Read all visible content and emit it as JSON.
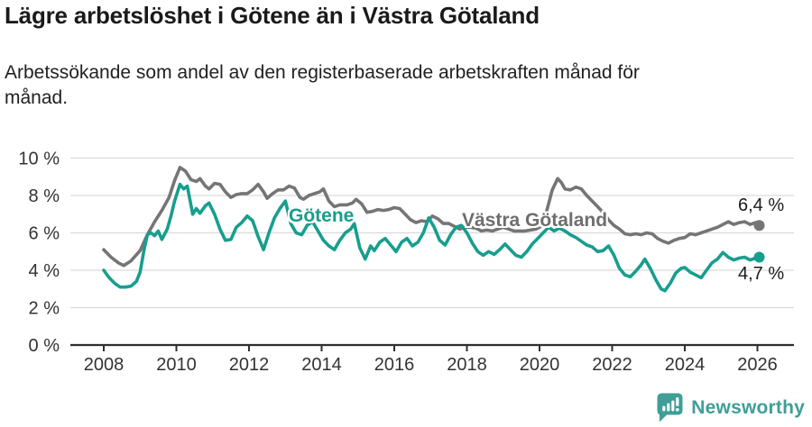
{
  "header": {
    "title": "Lägre arbetslöshet i Götene än i Västra Götaland",
    "subtitle": "Arbetssökande som andel av den registerbaserade arbetskraften månad för månad.",
    "subtitle_line1": "Arbetssökande som andel av den registerbaserade arbetskraften månad för",
    "subtitle_line2": "månad."
  },
  "annotations": {
    "series_label_gotene": "Götene",
    "series_label_vastra": "Västra Götaland",
    "end_label_vastra": "6,4 %",
    "end_label_gotene": "4,7 %"
  },
  "footer": {
    "brand": "Newsworthy",
    "logo_icon": "bar-chart-speech-bubble-icon",
    "brand_color": "#3f9e97"
  },
  "chart_data": {
    "type": "line",
    "title": "Lägre arbetslöshet i Götene än i Västra Götaland",
    "xlabel": "",
    "ylabel": "",
    "x_unit": "year (monthly data)",
    "ylim": [
      0,
      10
    ],
    "xlim": [
      2007.1,
      2027.2
    ],
    "grid": "horizontal",
    "legend_position": "inline-labels",
    "colors": {
      "grid": "#dadada",
      "axis": "#2e2e2e",
      "value_labels": "#1a1a1a"
    },
    "y_ticks": [
      0,
      2,
      4,
      6,
      8,
      10
    ],
    "y_tick_labels": [
      "0 %",
      "2 %",
      "4 %",
      "6 %",
      "8 %",
      "10 %"
    ],
    "x_ticks": [
      2008,
      2010,
      2012,
      2014,
      2016,
      2018,
      2020,
      2022,
      2024,
      2026
    ],
    "x_tick_labels": [
      "2008",
      "2010",
      "2012",
      "2014",
      "2016",
      "2018",
      "2020",
      "2022",
      "2024",
      "2026"
    ],
    "series": [
      {
        "name": "Västra Götaland",
        "color": "#757575",
        "end_value_label": "6,4 %",
        "points": [
          [
            2008.0,
            5.1
          ],
          [
            2008.2,
            4.7
          ],
          [
            2008.4,
            4.4
          ],
          [
            2008.55,
            4.25
          ],
          [
            2008.75,
            4.5
          ],
          [
            2009.0,
            5.05
          ],
          [
            2009.2,
            5.9
          ],
          [
            2009.4,
            6.6
          ],
          [
            2009.6,
            7.2
          ],
          [
            2009.8,
            7.9
          ],
          [
            2009.95,
            8.8
          ],
          [
            2010.1,
            9.5
          ],
          [
            2010.25,
            9.3
          ],
          [
            2010.4,
            8.85
          ],
          [
            2010.55,
            8.75
          ],
          [
            2010.65,
            8.9
          ],
          [
            2010.8,
            8.5
          ],
          [
            2010.9,
            8.35
          ],
          [
            2011.05,
            8.65
          ],
          [
            2011.2,
            8.6
          ],
          [
            2011.35,
            8.2
          ],
          [
            2011.5,
            7.9
          ],
          [
            2011.65,
            8.05
          ],
          [
            2011.8,
            8.1
          ],
          [
            2011.95,
            8.1
          ],
          [
            2012.1,
            8.3
          ],
          [
            2012.25,
            8.6
          ],
          [
            2012.4,
            8.2
          ],
          [
            2012.5,
            7.85
          ],
          [
            2012.65,
            8.1
          ],
          [
            2012.8,
            8.3
          ],
          [
            2012.95,
            8.3
          ],
          [
            2013.1,
            8.5
          ],
          [
            2013.25,
            8.4
          ],
          [
            2013.4,
            7.9
          ],
          [
            2013.5,
            7.8
          ],
          [
            2013.65,
            8.0
          ],
          [
            2013.8,
            8.1
          ],
          [
            2013.95,
            8.2
          ],
          [
            2014.05,
            8.35
          ],
          [
            2014.2,
            7.7
          ],
          [
            2014.35,
            7.4
          ],
          [
            2014.5,
            7.5
          ],
          [
            2014.7,
            7.5
          ],
          [
            2014.85,
            7.6
          ],
          [
            2014.95,
            7.8
          ],
          [
            2015.1,
            7.55
          ],
          [
            2015.25,
            7.1
          ],
          [
            2015.4,
            7.15
          ],
          [
            2015.55,
            7.25
          ],
          [
            2015.7,
            7.2
          ],
          [
            2015.85,
            7.25
          ],
          [
            2016.0,
            7.35
          ],
          [
            2016.15,
            7.3
          ],
          [
            2016.3,
            7.0
          ],
          [
            2016.45,
            6.7
          ],
          [
            2016.6,
            6.55
          ],
          [
            2016.75,
            6.65
          ],
          [
            2016.9,
            6.6
          ],
          [
            2017.05,
            6.9
          ],
          [
            2017.2,
            6.75
          ],
          [
            2017.35,
            6.5
          ],
          [
            2017.5,
            6.5
          ],
          [
            2017.65,
            6.35
          ],
          [
            2017.8,
            6.2
          ],
          [
            2017.95,
            6.3
          ],
          [
            2018.1,
            6.3
          ],
          [
            2018.25,
            6.25
          ],
          [
            2018.4,
            6.1
          ],
          [
            2018.55,
            6.15
          ],
          [
            2018.7,
            6.1
          ],
          [
            2018.85,
            6.2
          ],
          [
            2019.0,
            6.3
          ],
          [
            2019.15,
            6.2
          ],
          [
            2019.3,
            6.1
          ],
          [
            2019.45,
            6.1
          ],
          [
            2019.6,
            6.1
          ],
          [
            2019.75,
            6.15
          ],
          [
            2019.9,
            6.2
          ],
          [
            2020.05,
            6.35
          ],
          [
            2020.2,
            7.2
          ],
          [
            2020.35,
            8.3
          ],
          [
            2020.5,
            8.9
          ],
          [
            2020.6,
            8.7
          ],
          [
            2020.7,
            8.35
          ],
          [
            2020.85,
            8.3
          ],
          [
            2021.0,
            8.45
          ],
          [
            2021.15,
            8.35
          ],
          [
            2021.3,
            8.0
          ],
          [
            2021.45,
            7.7
          ],
          [
            2021.6,
            7.4
          ],
          [
            2021.75,
            7.1
          ],
          [
            2021.9,
            6.7
          ],
          [
            2022.05,
            6.4
          ],
          [
            2022.2,
            6.2
          ],
          [
            2022.35,
            5.95
          ],
          [
            2022.5,
            5.9
          ],
          [
            2022.65,
            5.95
          ],
          [
            2022.8,
            5.9
          ],
          [
            2022.95,
            6.0
          ],
          [
            2023.1,
            5.95
          ],
          [
            2023.25,
            5.7
          ],
          [
            2023.4,
            5.55
          ],
          [
            2023.55,
            5.45
          ],
          [
            2023.7,
            5.6
          ],
          [
            2023.85,
            5.7
          ],
          [
            2024.0,
            5.75
          ],
          [
            2024.15,
            5.95
          ],
          [
            2024.3,
            5.9
          ],
          [
            2024.45,
            6.0
          ],
          [
            2024.6,
            6.1
          ],
          [
            2024.75,
            6.2
          ],
          [
            2024.9,
            6.3
          ],
          [
            2025.05,
            6.45
          ],
          [
            2025.2,
            6.6
          ],
          [
            2025.35,
            6.45
          ],
          [
            2025.5,
            6.55
          ],
          [
            2025.65,
            6.6
          ],
          [
            2025.8,
            6.45
          ],
          [
            2025.95,
            6.55
          ],
          [
            2026.05,
            6.4
          ]
        ]
      },
      {
        "name": "Götene",
        "color": "#179e8e",
        "end_value_label": "4,7 %",
        "points": [
          [
            2008.0,
            4.0
          ],
          [
            2008.15,
            3.6
          ],
          [
            2008.3,
            3.3
          ],
          [
            2008.45,
            3.1
          ],
          [
            2008.6,
            3.1
          ],
          [
            2008.75,
            3.15
          ],
          [
            2008.9,
            3.4
          ],
          [
            2009.0,
            3.9
          ],
          [
            2009.1,
            5.0
          ],
          [
            2009.2,
            5.9
          ],
          [
            2009.3,
            6.0
          ],
          [
            2009.4,
            5.85
          ],
          [
            2009.5,
            6.1
          ],
          [
            2009.6,
            5.65
          ],
          [
            2009.75,
            6.2
          ],
          [
            2009.85,
            6.9
          ],
          [
            2009.95,
            7.7
          ],
          [
            2010.1,
            8.6
          ],
          [
            2010.2,
            8.35
          ],
          [
            2010.3,
            8.5
          ],
          [
            2010.45,
            7.0
          ],
          [
            2010.55,
            7.3
          ],
          [
            2010.65,
            7.05
          ],
          [
            2010.8,
            7.45
          ],
          [
            2010.9,
            7.6
          ],
          [
            2011.05,
            7.0
          ],
          [
            2011.2,
            6.2
          ],
          [
            2011.35,
            5.6
          ],
          [
            2011.5,
            5.65
          ],
          [
            2011.65,
            6.3
          ],
          [
            2011.8,
            6.55
          ],
          [
            2011.95,
            6.9
          ],
          [
            2012.1,
            6.65
          ],
          [
            2012.25,
            5.8
          ],
          [
            2012.4,
            5.1
          ],
          [
            2012.55,
            6.0
          ],
          [
            2012.7,
            6.8
          ],
          [
            2012.85,
            7.3
          ],
          [
            2013.0,
            7.7
          ],
          [
            2013.15,
            6.5
          ],
          [
            2013.3,
            6.0
          ],
          [
            2013.45,
            5.9
          ],
          [
            2013.6,
            6.4
          ],
          [
            2013.75,
            6.6
          ],
          [
            2013.9,
            6.1
          ],
          [
            2014.05,
            5.6
          ],
          [
            2014.2,
            5.3
          ],
          [
            2014.35,
            5.1
          ],
          [
            2014.5,
            5.6
          ],
          [
            2014.65,
            6.0
          ],
          [
            2014.8,
            6.2
          ],
          [
            2014.9,
            6.5
          ],
          [
            2015.05,
            5.2
          ],
          [
            2015.2,
            4.6
          ],
          [
            2015.35,
            5.3
          ],
          [
            2015.45,
            5.05
          ],
          [
            2015.6,
            5.5
          ],
          [
            2015.75,
            5.7
          ],
          [
            2015.9,
            5.35
          ],
          [
            2016.05,
            5.0
          ],
          [
            2016.2,
            5.5
          ],
          [
            2016.35,
            5.7
          ],
          [
            2016.5,
            5.3
          ],
          [
            2016.65,
            5.5
          ],
          [
            2016.8,
            6.0
          ],
          [
            2016.95,
            6.8
          ],
          [
            2017.1,
            6.3
          ],
          [
            2017.25,
            5.6
          ],
          [
            2017.4,
            5.35
          ],
          [
            2017.55,
            5.9
          ],
          [
            2017.7,
            6.3
          ],
          [
            2017.85,
            6.4
          ],
          [
            2018.0,
            6.0
          ],
          [
            2018.15,
            5.45
          ],
          [
            2018.3,
            5.0
          ],
          [
            2018.45,
            4.8
          ],
          [
            2018.6,
            5.0
          ],
          [
            2018.75,
            4.85
          ],
          [
            2018.9,
            5.1
          ],
          [
            2019.05,
            5.4
          ],
          [
            2019.2,
            5.1
          ],
          [
            2019.35,
            4.8
          ],
          [
            2019.5,
            4.7
          ],
          [
            2019.65,
            5.0
          ],
          [
            2019.8,
            5.4
          ],
          [
            2019.95,
            5.7
          ],
          [
            2020.1,
            6.0
          ],
          [
            2020.25,
            6.3
          ],
          [
            2020.4,
            6.1
          ],
          [
            2020.55,
            6.25
          ],
          [
            2020.7,
            6.1
          ],
          [
            2020.85,
            5.9
          ],
          [
            2021.0,
            5.75
          ],
          [
            2021.15,
            5.55
          ],
          [
            2021.3,
            5.35
          ],
          [
            2021.45,
            5.25
          ],
          [
            2021.6,
            5.0
          ],
          [
            2021.75,
            5.05
          ],
          [
            2021.9,
            5.3
          ],
          [
            2022.05,
            4.8
          ],
          [
            2022.2,
            4.1
          ],
          [
            2022.35,
            3.75
          ],
          [
            2022.5,
            3.65
          ],
          [
            2022.65,
            3.95
          ],
          [
            2022.8,
            4.3
          ],
          [
            2022.9,
            4.6
          ],
          [
            2023.05,
            4.1
          ],
          [
            2023.2,
            3.5
          ],
          [
            2023.35,
            3.0
          ],
          [
            2023.45,
            2.9
          ],
          [
            2023.6,
            3.3
          ],
          [
            2023.75,
            3.85
          ],
          [
            2023.9,
            4.1
          ],
          [
            2024.0,
            4.15
          ],
          [
            2024.15,
            3.9
          ],
          [
            2024.3,
            3.75
          ],
          [
            2024.45,
            3.6
          ],
          [
            2024.6,
            4.0
          ],
          [
            2024.75,
            4.4
          ],
          [
            2024.9,
            4.6
          ],
          [
            2025.05,
            4.95
          ],
          [
            2025.2,
            4.7
          ],
          [
            2025.35,
            4.55
          ],
          [
            2025.5,
            4.65
          ],
          [
            2025.65,
            4.7
          ],
          [
            2025.8,
            4.55
          ],
          [
            2025.95,
            4.65
          ],
          [
            2026.05,
            4.7
          ]
        ]
      }
    ]
  }
}
